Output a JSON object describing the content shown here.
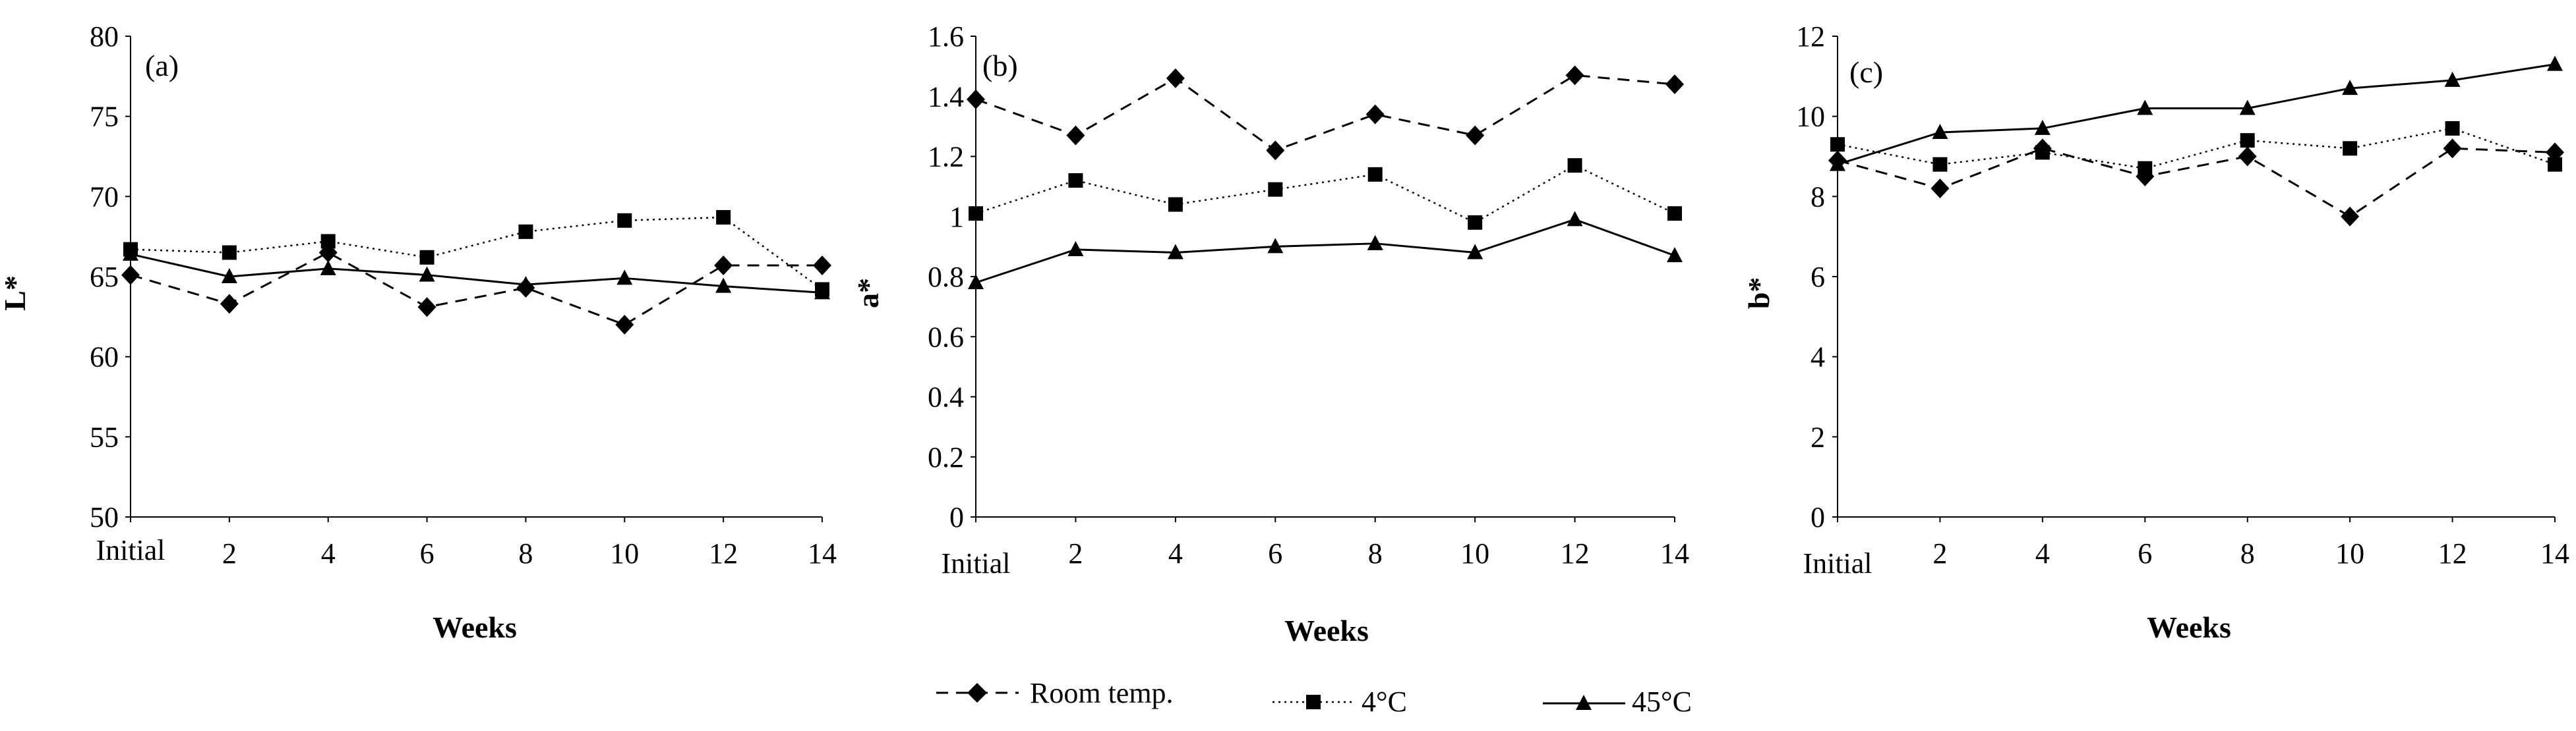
{
  "chart_data": [
    {
      "type": "line",
      "panel_label": "(a)",
      "title": "",
      "xlabel": "Weeks",
      "ylabel": "L*",
      "categories": [
        "Initial",
        "2",
        "4",
        "6",
        "8",
        "10",
        "12",
        "14"
      ],
      "ylim": [
        50,
        80
      ],
      "yticks": [
        "50",
        "55",
        "60",
        "65",
        "70",
        "75",
        "80"
      ],
      "grid": false,
      "series": [
        {
          "name": "Room temp.",
          "values": [
            65.1,
            63.3,
            66.5,
            63.1,
            64.3,
            62.0,
            65.7,
            65.7
          ]
        },
        {
          "name": "4°C",
          "values": [
            66.7,
            66.5,
            67.2,
            66.2,
            67.8,
            68.5,
            68.7,
            64.2
          ]
        },
        {
          "name": "45°C",
          "values": [
            66.4,
            65.0,
            65.5,
            65.1,
            64.5,
            64.9,
            64.4,
            64.0
          ]
        }
      ]
    },
    {
      "type": "line",
      "panel_label": "(b)",
      "title": "",
      "xlabel": "Weeks",
      "ylabel": "a*",
      "categories": [
        "Initial",
        "2",
        "4",
        "6",
        "8",
        "10",
        "12",
        "14"
      ],
      "ylim": [
        0,
        1.6
      ],
      "yticks": [
        "0",
        "0.2",
        "0.4",
        "0.6",
        "0.8",
        "1",
        "1.2",
        "1.4",
        "1.6"
      ],
      "grid": false,
      "series": [
        {
          "name": "Room temp.",
          "values": [
            1.39,
            1.27,
            1.46,
            1.22,
            1.34,
            1.27,
            1.47,
            1.44
          ]
        },
        {
          "name": "4°C",
          "values": [
            1.01,
            1.12,
            1.04,
            1.09,
            1.14,
            0.98,
            1.17,
            1.01
          ]
        },
        {
          "name": "45°C",
          "values": [
            0.78,
            0.89,
            0.88,
            0.9,
            0.91,
            0.88,
            0.99,
            0.87
          ]
        }
      ]
    },
    {
      "type": "line",
      "panel_label": "(c)",
      "title": "",
      "xlabel": "Weeks",
      "ylabel": "b*",
      "categories": [
        "Initial",
        "2",
        "4",
        "6",
        "8",
        "10",
        "12",
        "14"
      ],
      "ylim": [
        0,
        12
      ],
      "yticks": [
        "0",
        "2",
        "4",
        "6",
        "8",
        "10",
        "12"
      ],
      "grid": false,
      "series": [
        {
          "name": "Room temp.",
          "values": [
            8.9,
            8.2,
            9.2,
            8.5,
            9.0,
            7.5,
            9.2,
            9.1
          ]
        },
        {
          "name": "4°C",
          "values": [
            9.3,
            8.8,
            9.1,
            8.7,
            9.4,
            9.2,
            9.7,
            8.8
          ]
        },
        {
          "name": "45°C",
          "values": [
            8.8,
            9.6,
            9.7,
            10.2,
            10.2,
            10.7,
            10.9,
            11.3
          ]
        }
      ]
    }
  ],
  "legend": {
    "placement": "bottom-center",
    "items": [
      {
        "label": "Room temp.",
        "marker": "diamond",
        "line": "dashed"
      },
      {
        "label": "4°C",
        "marker": "square",
        "line": "dotted"
      },
      {
        "label": "45°C",
        "marker": "triangle",
        "line": "solid"
      }
    ]
  },
  "colors": {
    "ink": "#000000",
    "background": "#ffffff"
  }
}
